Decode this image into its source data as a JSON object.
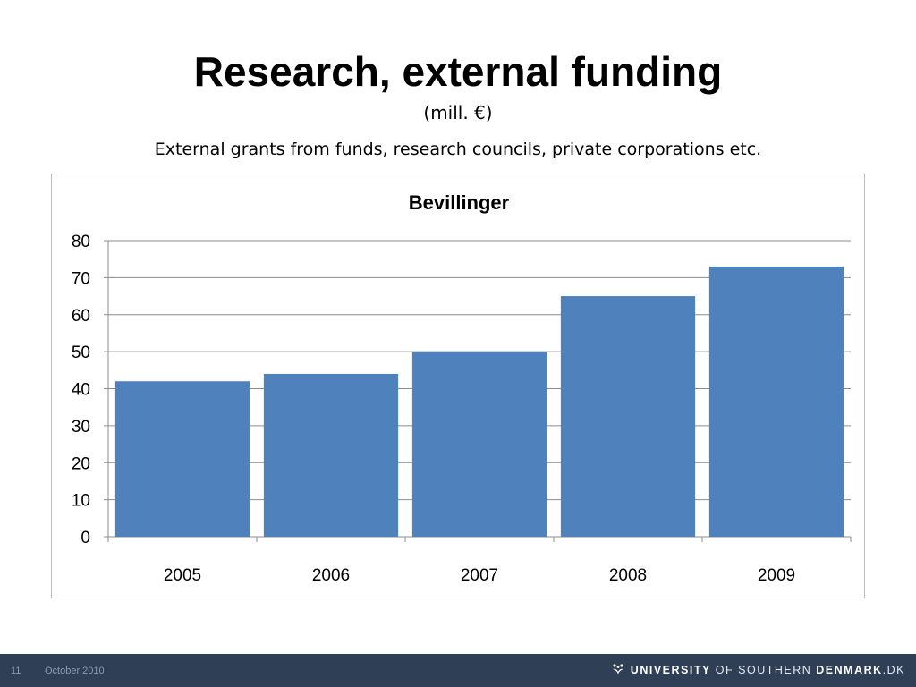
{
  "slide": {
    "title": "Research, external funding",
    "subtitle": "(mill. €)",
    "caption": "External grants from funds, research councils, private corporations etc."
  },
  "chart_data": {
    "type": "bar",
    "title": "Bevillinger",
    "categories": [
      "2005",
      "2006",
      "2007",
      "2008",
      "2009"
    ],
    "values": [
      42,
      44,
      50,
      65,
      73
    ],
    "ylim": [
      0,
      80
    ],
    "yticks": [
      0,
      10,
      20,
      30,
      40,
      50,
      60,
      70,
      80
    ],
    "xlabel": "",
    "ylabel": "",
    "grid": true,
    "legend": "none",
    "bar_color": "#4f81bd"
  },
  "footer": {
    "page_number": "11",
    "date": "October 2010",
    "logo": {
      "part1": "UNIVERSITY",
      "part2": "OF SOUTHERN",
      "part3": "DENMARK",
      "part4": ".DK"
    }
  }
}
